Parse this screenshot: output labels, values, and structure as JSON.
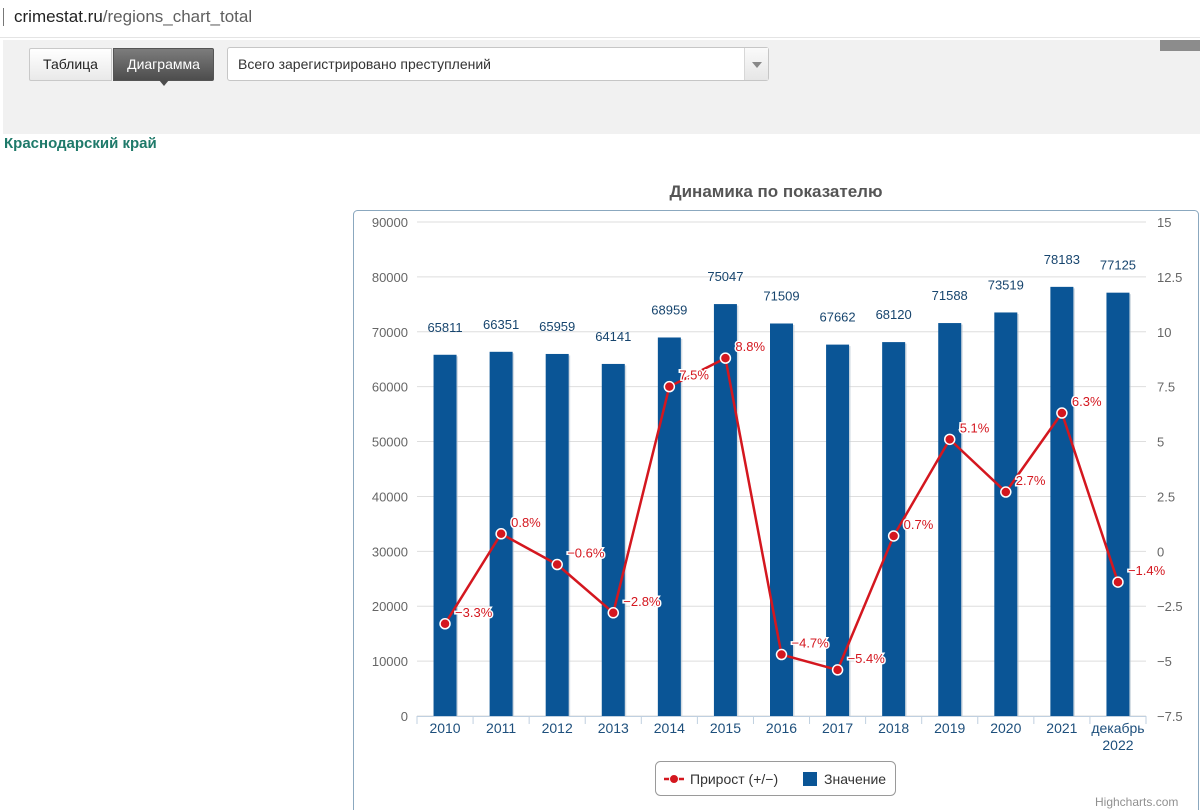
{
  "browser": {
    "url_host": "crimestat.ru",
    "url_path": "/regions_chart_total"
  },
  "toolbar": {
    "tab_table": "Таблица",
    "tab_chart": "Диаграмма",
    "indicator_select": "Всего зарегистрировано преступлений"
  },
  "region_name": "Краснодарский край",
  "credits": "Highcharts.com",
  "colors": {
    "bar": "#0a5596",
    "line": "#d4171f",
    "region_text": "#1f7a6a"
  },
  "chart_data": {
    "type": "bar",
    "title": "Динамика по показателю",
    "categories": [
      "2010",
      "2011",
      "2012",
      "2013",
      "2014",
      "2015",
      "2016",
      "2017",
      "2018",
      "2019",
      "2020",
      "2021",
      "декабрь 2022"
    ],
    "series": [
      {
        "name": "Значение",
        "type": "bar",
        "axis": "left",
        "values": [
          65811,
          66351,
          65959,
          64141,
          68959,
          75047,
          71509,
          67662,
          68120,
          71588,
          73519,
          78183,
          77125
        ]
      },
      {
        "name": "Прирост (+/−)",
        "type": "line",
        "axis": "right",
        "values": [
          -3.3,
          0.8,
          -0.6,
          -2.8,
          7.5,
          8.8,
          -4.7,
          -5.4,
          0.7,
          5.1,
          2.7,
          6.3,
          -1.4
        ],
        "labels": [
          "-3.3%",
          "0.8%",
          "-0.6%",
          "-2.8%",
          "7.5%",
          "8.8%",
          "-4.7%",
          "-5.4%",
          "0.7%",
          "5.1%",
          "2.7%",
          "6.3%",
          "-1.4%"
        ]
      }
    ],
    "y_left": {
      "ylim": [
        0,
        90000
      ],
      "ticks": [
        "0",
        "10000",
        "20000",
        "30000",
        "40000",
        "50000",
        "60000",
        "70000",
        "80000",
        "90000"
      ]
    },
    "y_right": {
      "ylim": [
        -7.5,
        15
      ],
      "ticks": [
        "-7.5",
        "-5",
        "-2.5",
        "0",
        "2.5",
        "5",
        "7.5",
        "10",
        "12.5",
        "15"
      ]
    },
    "legend_position": "bottom-center",
    "grid": true
  }
}
